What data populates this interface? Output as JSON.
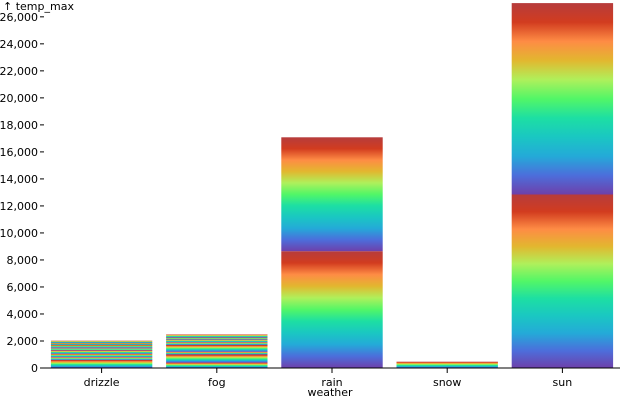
{
  "chart_data": {
    "type": "bar",
    "stacked": true,
    "title": "",
    "xlabel": "weather",
    "ylabel": "↑ temp_max",
    "categories": [
      "drizzle",
      "fog",
      "rain",
      "snow",
      "sun"
    ],
    "totals": [
      2020,
      2480,
      17080,
      470,
      27020
    ],
    "segment_boundaries": [
      [
        0,
        600,
        800,
        1050,
        1300,
        1450,
        1500,
        1700,
        1850,
        2020
      ],
      [
        0,
        400,
        1000,
        1200,
        1700,
        1900,
        2100,
        2250,
        2480
      ],
      [
        0,
        8650,
        17080
      ],
      [
        0,
        470
      ],
      [
        0,
        12850,
        27020
      ]
    ],
    "ylim": [
      0,
      27000
    ],
    "yticks": [
      0,
      2000,
      4000,
      6000,
      8000,
      10000,
      12000,
      14000,
      16000,
      18000,
      20000,
      22000,
      24000,
      26000
    ],
    "ytick_labels": [
      "0",
      "2,000",
      "4,000",
      "6,000",
      "8,000",
      "10,000",
      "12,000",
      "14,000",
      "16,000",
      "18,000",
      "20,000",
      "22,000",
      "24,000",
      "26,000"
    ],
    "color_scheme": "rainbow",
    "colors": [
      "#6e40aa",
      "#4c6edb",
      "#24aad8",
      "#1ac7c2",
      "#1ddfa3",
      "#52f667",
      "#aff05b",
      "#e2b72f",
      "#fe8c45",
      "#d23c1f",
      "#b63c3c"
    ]
  }
}
